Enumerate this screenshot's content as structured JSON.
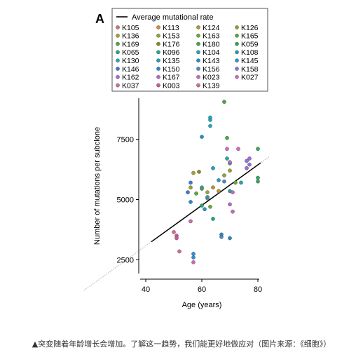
{
  "panel_label": "A",
  "caption": "▲突变随着年龄增长会增加。了解这一趋势，我们能更好地做应对（图片来源：《细胞》）",
  "chart_data": {
    "type": "scatter",
    "xlabel": "Age (years)",
    "ylabel": "Number of mutations per subclone",
    "xlim": [
      36,
      84
    ],
    "ylim": [
      1700,
      9200
    ],
    "xticks": [
      40,
      60,
      80
    ],
    "yticks": [
      2500,
      5000,
      7500
    ],
    "grid": false,
    "legend_placement": "top",
    "line": {
      "name": "Average mutational rate",
      "x": [
        42,
        81
      ],
      "y": [
        3250,
        6520
      ],
      "extension_x": [
        18,
        84
      ],
      "color": "#000000"
    },
    "series": [
      {
        "name": "K105",
        "color": "#e06a6a",
        "points": []
      },
      {
        "name": "K113",
        "color": "#d88a3a",
        "points": []
      },
      {
        "name": "K124",
        "color": "#b5962a",
        "points": [
          [
            64,
            5500
          ],
          [
            66,
            5350
          ]
        ]
      },
      {
        "name": "K126",
        "color": "#9aa02a",
        "points": [
          [
            56,
            5500
          ],
          [
            70,
            6200
          ]
        ]
      },
      {
        "name": "K136",
        "color": "#a8a02a",
        "points": [
          [
            57,
            6100
          ],
          [
            62,
            5300
          ]
        ]
      },
      {
        "name": "K153",
        "color": "#8fa630",
        "points": [
          [
            62,
            5050
          ],
          [
            68,
            6000
          ]
        ]
      },
      {
        "name": "K163",
        "color": "#6aa830",
        "points": [
          [
            63,
            4700
          ],
          [
            72,
            5700
          ]
        ]
      },
      {
        "name": "K165",
        "color": "#5aac30",
        "points": [
          [
            58,
            5250
          ]
        ]
      },
      {
        "name": "K169",
        "color": "#4aaa40",
        "points": [
          [
            68,
            9050
          ],
          [
            69,
            7550
          ]
        ]
      },
      {
        "name": "K176",
        "color": "#8a8a20",
        "points": [
          [
            59,
            6150
          ],
          [
            60,
            5450
          ]
        ]
      },
      {
        "name": "K180",
        "color": "#3aa850",
        "points": [
          [
            80,
            7100
          ],
          [
            70,
            6500
          ]
        ]
      },
      {
        "name": "K059",
        "color": "#30a860",
        "points": [
          [
            80,
            5900
          ],
          [
            80,
            5750
          ]
        ]
      },
      {
        "name": "K065",
        "color": "#20a878",
        "points": [
          [
            60,
            4750
          ],
          [
            64,
            4200
          ]
        ]
      },
      {
        "name": "K096",
        "color": "#20aa90",
        "points": [
          [
            60,
            5500
          ],
          [
            70,
            5350
          ]
        ]
      },
      {
        "name": "K104",
        "color": "#20a8a8",
        "points": [
          [
            69,
            6700
          ],
          [
            74,
            5700
          ]
        ]
      },
      {
        "name": "K108",
        "color": "#20a0b8",
        "points": [
          [
            64,
            6300
          ],
          [
            66,
            5800
          ]
        ]
      },
      {
        "name": "K130",
        "color": "#20a8c0",
        "points": [
          [
            63,
            8400
          ],
          [
            63,
            8300
          ],
          [
            63,
            8050
          ]
        ]
      },
      {
        "name": "K135",
        "color": "#2098c8",
        "points": [
          [
            62,
            5100
          ],
          [
            61,
            4600
          ]
        ]
      },
      {
        "name": "K143",
        "color": "#1890d0",
        "points": [
          [
            60,
            7600
          ],
          [
            56,
            4900
          ]
        ]
      },
      {
        "name": "K145",
        "color": "#3090d8",
        "points": [
          [
            57,
            2750
          ],
          [
            57,
            2600
          ]
        ]
      },
      {
        "name": "K146",
        "color": "#3a78d8",
        "points": [
          [
            55,
            5300
          ],
          [
            56,
            5700
          ]
        ]
      },
      {
        "name": "K150",
        "color": "#2a88c0",
        "points": [
          [
            70,
            3400
          ],
          [
            67,
            3550
          ]
        ]
      },
      {
        "name": "K156",
        "color": "#4a88c8",
        "points": [
          [
            67,
            3450
          ],
          [
            68,
            5750
          ]
        ]
      },
      {
        "name": "K158",
        "color": "#8a78d8",
        "points": [
          [
            76,
            6600
          ],
          [
            77,
            6450
          ]
        ]
      },
      {
        "name": "K162",
        "color": "#a868d8",
        "points": [
          [
            77,
            6700
          ],
          [
            76,
            6300
          ]
        ]
      },
      {
        "name": "K167",
        "color": "#b868d0",
        "points": [
          [
            70,
            6550
          ],
          [
            70,
            4800
          ]
        ]
      },
      {
        "name": "K023",
        "color": "#c868c8",
        "points": [
          [
            71,
            5300
          ],
          [
            71,
            4500
          ]
        ]
      },
      {
        "name": "K027",
        "color": "#d868c0",
        "points": [
          [
            69,
            7100
          ],
          [
            73,
            7100
          ]
        ]
      },
      {
        "name": "K037",
        "color": "#d06aa8",
        "points": [
          [
            56,
            4100
          ],
          [
            57,
            2400
          ]
        ]
      },
      {
        "name": "K003",
        "color": "#c85a98",
        "points": [
          [
            51,
            3500
          ],
          [
            51,
            3400
          ]
        ]
      },
      {
        "name": "K139",
        "color": "#d86890",
        "points": [
          [
            50,
            3650
          ],
          [
            52,
            2850
          ]
        ]
      }
    ]
  }
}
